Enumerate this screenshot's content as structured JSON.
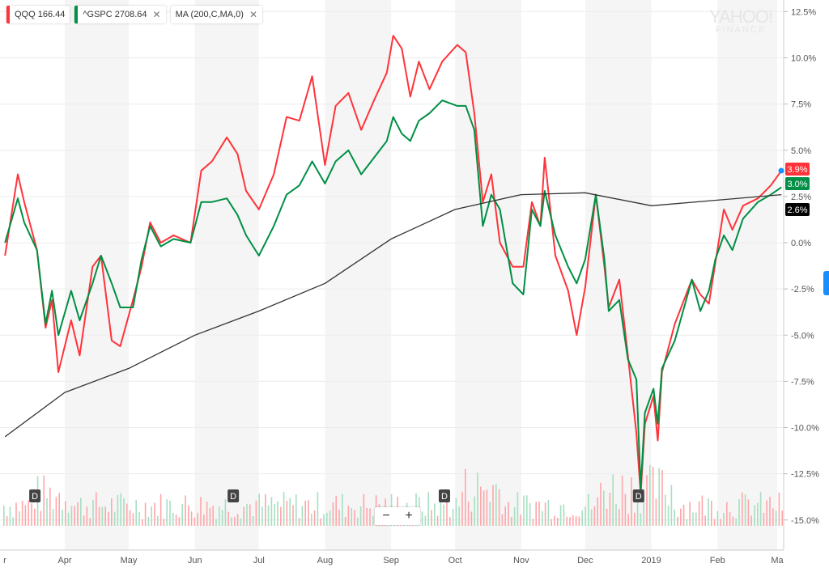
{
  "legend": {
    "items": [
      {
        "label": "QQQ 166.44",
        "color": "#ff333a",
        "closable": false
      },
      {
        "label": "^GSPC 2708.64",
        "color": "#008f44",
        "closable": true
      },
      {
        "label": "MA (200,C,MA,0)",
        "color": null,
        "closable": true
      }
    ],
    "close_glyph": "✕"
  },
  "watermark": {
    "line1": "YAHOO!",
    "line2": "FINANCE"
  },
  "zoom_controls": {
    "minus": "−",
    "plus": "+"
  },
  "chart_data": {
    "type": "line",
    "y_axis": {
      "position": "right",
      "unit": "%",
      "ylim": [
        -16.5,
        13
      ],
      "ticks": [
        12.5,
        10,
        7.5,
        5,
        2.5,
        0,
        -2.5,
        -5,
        -7.5,
        -10,
        -12.5,
        -15
      ],
      "tick_labels": [
        "12.5%",
        "10.0%",
        "7.5%",
        "5.0%",
        "2.5%",
        "0.0%",
        "-2.5%",
        "-5.0%",
        "-7.5%",
        "-10.0%",
        "-12.5%",
        "-15.0%"
      ]
    },
    "x_axis": {
      "xlim": [
        "2018-03-01",
        "2019-03-04"
      ],
      "ticks": [
        "2018-03-01",
        "2018-04-01",
        "2018-05-01",
        "2018-06-01",
        "2018-07-01",
        "2018-08-01",
        "2018-09-01",
        "2018-10-01",
        "2018-11-01",
        "2018-12-01",
        "2019-01-01",
        "2019-02-01",
        "2019-03-01"
      ],
      "tick_labels": [
        "r",
        "Apr",
        "May",
        "Jun",
        "Jul",
        "Aug",
        "Sep",
        "Oct",
        "Nov",
        "Dec",
        "2019",
        "Feb",
        "Ma"
      ]
    },
    "shaded_months": [
      "2018-04",
      "2018-06",
      "2018-08",
      "2018-10",
      "2018-12",
      "2019-02"
    ],
    "grid": true,
    "x": [
      "2018-03-04",
      "2018-03-10",
      "2018-03-13",
      "2018-03-19",
      "2018-03-23",
      "2018-03-26",
      "2018-03-29",
      "2018-04-04",
      "2018-04-08",
      "2018-04-14",
      "2018-04-18",
      "2018-04-23",
      "2018-04-27",
      "2018-05-03",
      "2018-05-07",
      "2018-05-11",
      "2018-05-16",
      "2018-05-22",
      "2018-05-30",
      "2018-06-04",
      "2018-06-09",
      "2018-06-16",
      "2018-06-21",
      "2018-06-25",
      "2018-07-01",
      "2018-07-08",
      "2018-07-14",
      "2018-07-20",
      "2018-07-26",
      "2018-08-01",
      "2018-08-06",
      "2018-08-12",
      "2018-08-18",
      "2018-08-24",
      "2018-08-30",
      "2018-09-02",
      "2018-09-06",
      "2018-09-10",
      "2018-09-14",
      "2018-09-19",
      "2018-09-25",
      "2018-10-02",
      "2018-10-06",
      "2018-10-10",
      "2018-10-14",
      "2018-10-18",
      "2018-10-22",
      "2018-10-28",
      "2018-11-02",
      "2018-11-06",
      "2018-11-10",
      "2018-11-12",
      "2018-11-17",
      "2018-11-23",
      "2018-11-27",
      "2018-12-01",
      "2018-12-06",
      "2018-12-10",
      "2018-12-12",
      "2018-12-17",
      "2018-12-21",
      "2018-12-25",
      "2018-12-27",
      "2018-12-29",
      "2019-01-02",
      "2019-01-04",
      "2019-01-06",
      "2019-01-12",
      "2019-01-20",
      "2019-01-24",
      "2019-01-28",
      "2019-01-31",
      "2019-02-04",
      "2019-02-08",
      "2019-02-13",
      "2019-02-20",
      "2019-02-26",
      "2019-03-03"
    ],
    "series": [
      {
        "name": "QQQ",
        "color": "#ff333a",
        "last_label": "3.9%",
        "values": [
          -0.7,
          3.7,
          2.2,
          -0.4,
          -4.6,
          -3.1,
          -7.0,
          -4.2,
          -6.1,
          -1.3,
          -0.7,
          -5.3,
          -5.6,
          -3.1,
          -1.3,
          1.1,
          0,
          0.4,
          0,
          3.9,
          4.4,
          5.7,
          4.8,
          2.8,
          1.8,
          3.7,
          6.8,
          6.6,
          9.0,
          4.2,
          7.4,
          8.1,
          6.1,
          7.7,
          9.2,
          11.2,
          10.5,
          7.9,
          9.8,
          8.3,
          9.8,
          10.7,
          10.3,
          7.0,
          2.2,
          3.7,
          0,
          -1.3,
          -1.3,
          2.2,
          0.9,
          4.6,
          -0.7,
          -2.6,
          -5.0,
          -2.4,
          2.6,
          -1.3,
          -3.5,
          -2.0,
          -6.1,
          -10.3,
          -13.6,
          -9.8,
          -8.3,
          -10.7,
          -7.0,
          -4.4,
          -2.0,
          -2.8,
          -3.3,
          -1.1,
          1.8,
          0.7,
          2.0,
          2.4,
          3.1,
          3.9
        ]
      },
      {
        "name": "^GSPC",
        "color": "#008f44",
        "last_label": "3.0%",
        "values": [
          0,
          2.4,
          1.1,
          -0.4,
          -4.4,
          -2.6,
          -5.0,
          -2.6,
          -4.2,
          -2.2,
          -0.7,
          -2.2,
          -3.5,
          -3.5,
          -0.9,
          0.9,
          -0.2,
          0.2,
          0,
          2.2,
          2.2,
          2.4,
          1.5,
          0.4,
          -0.7,
          0.9,
          2.6,
          3.1,
          4.4,
          3.2,
          4.4,
          5.0,
          3.7,
          4.6,
          5.5,
          6.8,
          5.9,
          5.5,
          6.6,
          7.0,
          7.7,
          7.4,
          7.4,
          6.1,
          0.9,
          2.6,
          1.8,
          -2.2,
          -2.8,
          1.8,
          0.9,
          2.8,
          0.4,
          -1.3,
          -2.2,
          -0.9,
          2.6,
          -0.9,
          -3.7,
          -3.1,
          -6.3,
          -7.4,
          -13.3,
          -9.2,
          -7.9,
          -9.8,
          -6.8,
          -5.3,
          -2.0,
          -3.7,
          -2.6,
          -0.9,
          0.4,
          -0.4,
          1.3,
          2.2,
          2.6,
          3.0
        ]
      },
      {
        "name": "MA (200,C,MA,0)",
        "color": "#333333",
        "last_label": "2.6%",
        "x": [
          "2018-03-04",
          "2018-04-01",
          "2018-05-01",
          "2018-06-01",
          "2018-07-01",
          "2018-08-01",
          "2018-09-01",
          "2018-10-01",
          "2018-11-01",
          "2018-12-01",
          "2019-01-01",
          "2019-02-01",
          "2019-03-03"
        ],
        "values": [
          -10.5,
          -8.1,
          -6.8,
          -5.0,
          -3.7,
          -2.2,
          0.2,
          1.8,
          2.6,
          2.7,
          2.0,
          2.3,
          2.6
        ]
      }
    ],
    "dividend_markers": {
      "label": "D",
      "dates": [
        "2018-03-18",
        "2018-06-19",
        "2018-09-26",
        "2018-12-26"
      ]
    },
    "volume": {
      "up_color": "#a6dfc1",
      "down_color": "#ffa6a9"
    }
  }
}
